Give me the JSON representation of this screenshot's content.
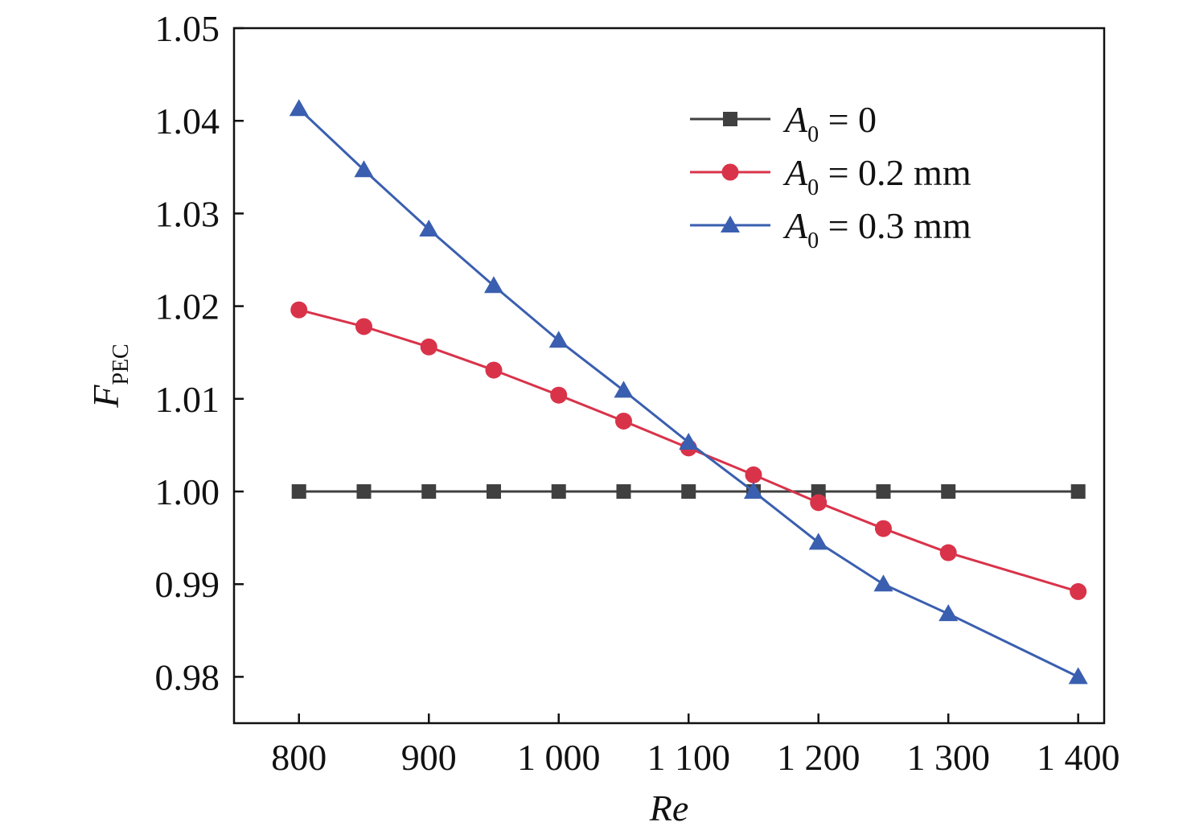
{
  "chart_data": {
    "type": "line",
    "xlabel": "Re",
    "ylabel": "F",
    "ylabel_sub": "PEC",
    "xlim": [
      750,
      1420
    ],
    "ylim": [
      0.975,
      1.05
    ],
    "xticks": [
      800,
      900,
      1000,
      1100,
      1200,
      1300,
      1400
    ],
    "xtick_labels": [
      "800",
      "900",
      "1 000",
      "1 100",
      "1 200",
      "1 300",
      "1 400"
    ],
    "yticks": [
      0.98,
      0.99,
      1.0,
      1.01,
      1.02,
      1.03,
      1.04,
      1.05
    ],
    "ytick_labels": [
      "0.98",
      "0.99",
      "1.00",
      "1.01",
      "1.02",
      "1.03",
      "1.04",
      "1.05"
    ],
    "grid": false,
    "legend_position": "top-right",
    "x": [
      800,
      850,
      900,
      950,
      1000,
      1050,
      1100,
      1150,
      1200,
      1250,
      1300,
      1400
    ],
    "series": [
      {
        "label_main": "A",
        "label_sub": "0",
        "label_rest": " = 0",
        "marker": "square",
        "color": "#404040",
        "values": [
          1.0,
          1.0,
          1.0,
          1.0,
          1.0,
          1.0,
          1.0,
          1.0,
          1.0,
          1.0,
          1.0,
          1.0
        ]
      },
      {
        "label_main": "A",
        "label_sub": "0",
        "label_rest": " = 0.2 mm",
        "marker": "circle",
        "color": "#d9334a",
        "values": [
          1.0196,
          1.0178,
          1.0156,
          1.0131,
          1.0104,
          1.0076,
          1.0047,
          1.0018,
          0.9988,
          0.996,
          0.9934,
          0.9892
        ]
      },
      {
        "label_main": "A",
        "label_sub": "0",
        "label_rest": " = 0.3 mm",
        "marker": "triangle",
        "color": "#3a5fb0",
        "values": [
          1.0413,
          1.0347,
          1.0283,
          1.0222,
          1.0163,
          1.0109,
          1.0053,
          1.0,
          0.9945,
          0.99,
          0.9868,
          0.98
        ]
      }
    ]
  }
}
